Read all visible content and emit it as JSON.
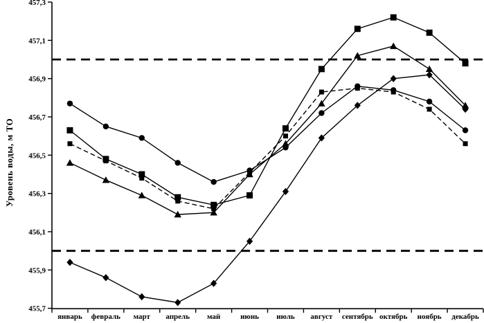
{
  "figure": {
    "background": "#ffffff",
    "ink_color": "#000000"
  },
  "chart_data": {
    "type": "line",
    "title": "",
    "xlabel": "",
    "ylabel": "Уровень воды, м ТО",
    "x_categories": [
      "январь",
      "февраль",
      "март",
      "апрель",
      "май",
      "июнь",
      "июль",
      "август",
      "сентябрь",
      "октябрь",
      "ноябрь",
      "декабрь"
    ],
    "ylim": [
      455.7,
      457.3
    ],
    "ytick_step": 0.2,
    "ytick_labels": [
      "455,7",
      "455,9",
      "456,1",
      "456,3",
      "456,5",
      "456,7",
      "456,9",
      "457,1",
      "457,3"
    ],
    "grid": "off",
    "legend": "none",
    "reference_lines": {
      "style": "bold-dashed",
      "values": [
        457.0,
        456.0
      ]
    },
    "series": [
      {
        "name": "circle-series",
        "marker": "circle",
        "line_style": "solid",
        "values": [
          456.77,
          456.65,
          456.59,
          456.46,
          456.36,
          456.42,
          456.54,
          456.72,
          456.86,
          456.84,
          456.78,
          456.63
        ]
      },
      {
        "name": "square-series",
        "marker": "square",
        "line_style": "solid",
        "values": [
          456.63,
          456.48,
          456.4,
          456.28,
          456.24,
          456.29,
          456.64,
          456.95,
          457.16,
          457.22,
          457.14,
          456.98
        ]
      },
      {
        "name": "small-square-dashed-series",
        "marker": "square-small",
        "line_style": "dashed",
        "values": [
          456.56,
          456.47,
          456.38,
          456.26,
          456.22,
          456.41,
          456.6,
          456.83,
          456.85,
          456.83,
          456.74,
          456.56
        ]
      },
      {
        "name": "triangle-series",
        "marker": "triangle",
        "line_style": "solid",
        "values": [
          456.46,
          456.37,
          456.29,
          456.19,
          456.2,
          456.4,
          456.56,
          456.77,
          457.02,
          457.07,
          456.95,
          456.76
        ]
      },
      {
        "name": "diamond-series",
        "marker": "diamond",
        "line_style": "solid",
        "values": [
          455.94,
          455.86,
          455.76,
          455.73,
          455.83,
          456.05,
          456.31,
          456.59,
          456.76,
          456.9,
          456.92,
          456.74
        ]
      }
    ]
  }
}
